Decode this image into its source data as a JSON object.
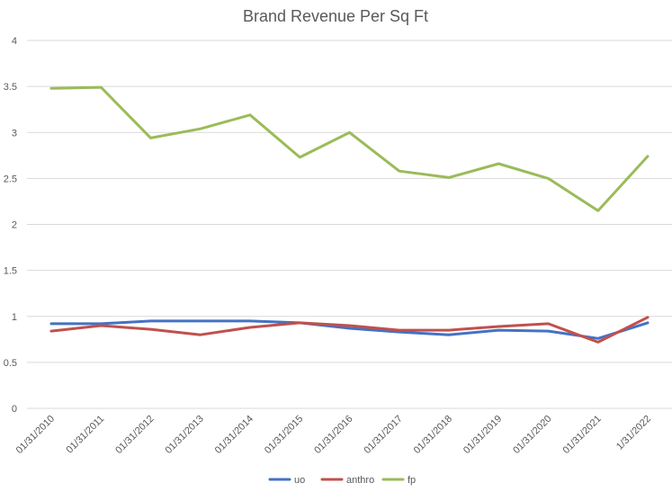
{
  "chart_data": {
    "type": "line",
    "title": "Brand Revenue Per Sq Ft",
    "xlabel": "",
    "ylabel": "",
    "ylim": [
      0,
      4
    ],
    "y_ticks": [
      "0",
      "0.5",
      "1",
      "1.5",
      "2",
      "2.5",
      "3",
      "3.5",
      "4"
    ],
    "grid": true,
    "legend_position": "bottom",
    "categories": [
      "01/31/2010",
      "01/31/2011",
      "01/31/2012",
      "01/31/2013",
      "01/31/2014",
      "01/31/2015",
      "01/31/2016",
      "01/31/2017",
      "01/31/2018",
      "01/31/2019",
      "01/31/2020",
      "01/31/2021",
      "1/31/2022"
    ],
    "series": [
      {
        "name": "uo",
        "color": "#4472C4",
        "values": [
          0.92,
          0.92,
          0.95,
          0.95,
          0.95,
          0.93,
          0.87,
          0.83,
          0.8,
          0.85,
          0.84,
          0.76,
          0.93
        ]
      },
      {
        "name": "anthro",
        "color": "#C0504D",
        "values": [
          0.84,
          0.9,
          0.86,
          0.8,
          0.88,
          0.93,
          0.9,
          0.85,
          0.85,
          0.89,
          0.92,
          0.72,
          0.99
        ]
      },
      {
        "name": "fp",
        "color": "#9BBB59",
        "values": [
          3.48,
          3.49,
          2.94,
          3.04,
          3.19,
          2.73,
          3.0,
          2.58,
          2.51,
          2.66,
          2.5,
          2.15,
          2.74
        ]
      }
    ]
  }
}
